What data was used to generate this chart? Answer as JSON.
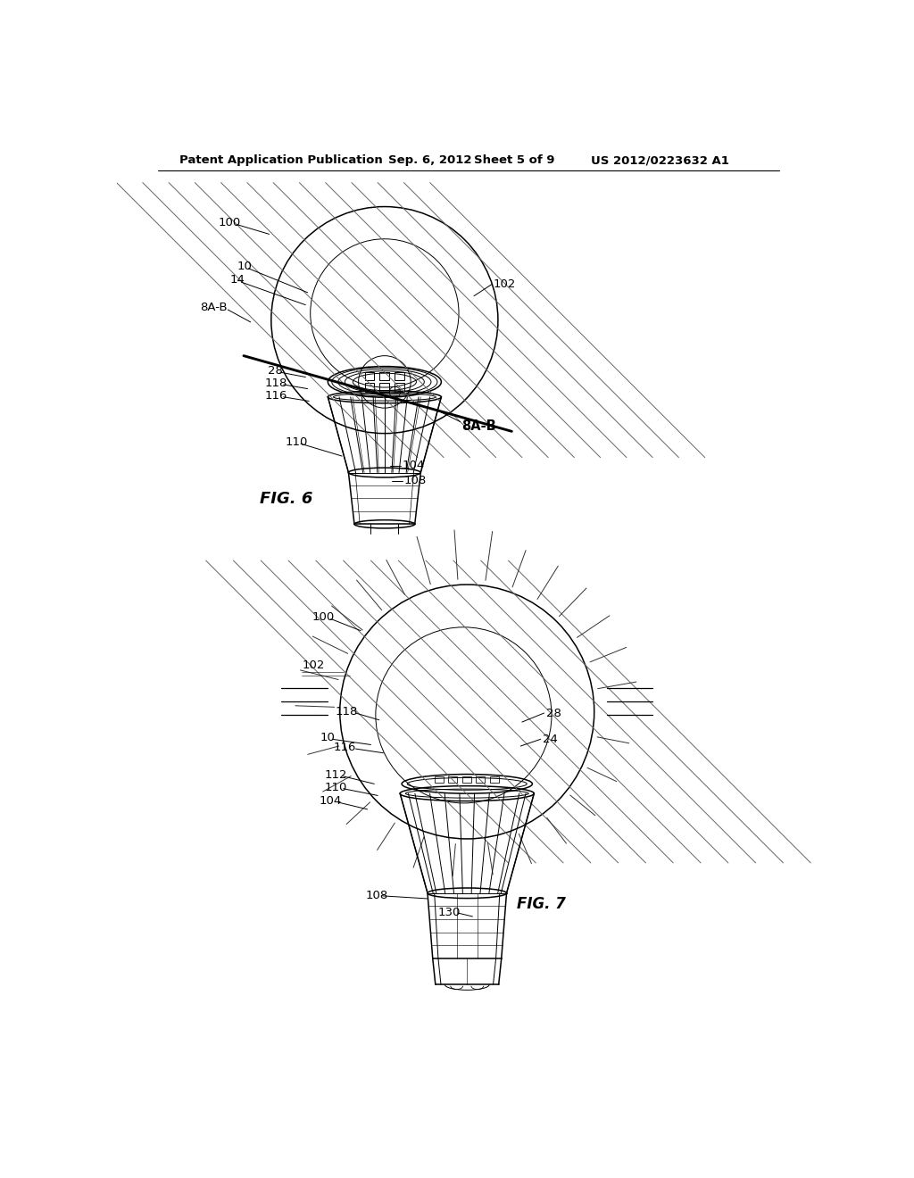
{
  "bg_color": "#ffffff",
  "header_text": "Patent Application Publication",
  "header_date": "Sep. 6, 2012",
  "header_sheet": "Sheet 5 of 9",
  "header_patent": "US 2012/0223632 A1",
  "fig6_label": "FIG. 6",
  "fig7_label": "FIG. 7",
  "line_color": "#000000",
  "label_fontsize": 9.5,
  "header_fontsize": 9.5,
  "fig_label_fontsize": 12
}
